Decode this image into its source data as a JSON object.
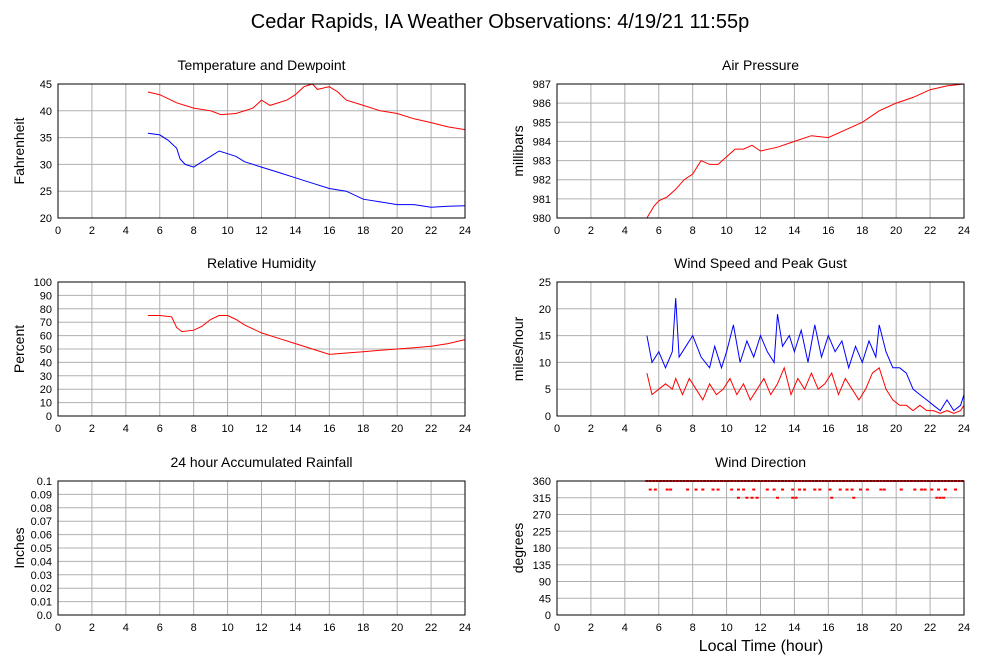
{
  "page": {
    "title": "Cedar Rapids, IA Weather Observations: 4/19/21 11:55p",
    "x_axis_title": "Local Time (hour)"
  },
  "colors": {
    "primary": "#ff0000",
    "secondary": "#0000ff",
    "grid": "#b0b0b0"
  },
  "chart_data": [
    {
      "id": "temperature-dewpoint",
      "type": "line",
      "title": "Temperature and Dewpoint",
      "xlabel": "",
      "ylabel": "Fahrenheit",
      "xlim": [
        0,
        24
      ],
      "ylim": [
        20,
        45
      ],
      "xticks": [
        0,
        2,
        4,
        6,
        8,
        10,
        12,
        14,
        16,
        18,
        20,
        22,
        24
      ],
      "yticks": [
        20,
        25,
        30,
        35,
        40,
        45
      ],
      "grid": true,
      "series": [
        {
          "color": "#ff0000",
          "x": [
            5.3,
            6.0,
            7.0,
            8.0,
            9.0,
            9.6,
            10.5,
            11.5,
            12.0,
            12.5,
            13.5,
            14.0,
            14.5,
            15.0,
            15.3,
            16.0,
            16.5,
            17.0,
            18.0,
            19.0,
            20.0,
            21.0,
            22.0,
            23.0,
            24.0
          ],
          "y": [
            43.5,
            43.0,
            41.5,
            40.5,
            40.0,
            39.3,
            39.5,
            40.5,
            42.0,
            41.0,
            42.0,
            43.0,
            44.5,
            45.0,
            44.0,
            44.5,
            43.5,
            42.0,
            41.0,
            40.0,
            39.5,
            38.5,
            37.8,
            37.0,
            36.5
          ]
        },
        {
          "color": "#0000ff",
          "x": [
            5.3,
            6.0,
            6.5,
            7.0,
            7.2,
            7.5,
            8.0,
            8.5,
            9.0,
            9.5,
            10.0,
            10.5,
            11.0,
            12.0,
            13.0,
            14.0,
            15.0,
            16.0,
            17.0,
            18.0,
            19.0,
            20.0,
            21.0,
            22.0,
            23.0,
            24.0
          ],
          "y": [
            35.8,
            35.5,
            34.5,
            33.0,
            31.0,
            30.0,
            29.5,
            30.5,
            31.5,
            32.5,
            32.0,
            31.5,
            30.5,
            29.5,
            28.5,
            27.5,
            26.5,
            25.5,
            25.0,
            23.5,
            23.0,
            22.5,
            22.5,
            22.0,
            22.2,
            22.3
          ]
        }
      ]
    },
    {
      "id": "air-pressure",
      "type": "line",
      "title": "Air Pressure",
      "xlabel": "",
      "ylabel": "millibars",
      "xlim": [
        0,
        24
      ],
      "ylim": [
        980,
        987
      ],
      "xticks": [
        0,
        2,
        4,
        6,
        8,
        10,
        12,
        14,
        16,
        18,
        20,
        22,
        24
      ],
      "yticks": [
        980,
        981,
        982,
        983,
        984,
        985,
        986,
        987
      ],
      "grid": true,
      "series": [
        {
          "color": "#ff0000",
          "x": [
            5.3,
            5.7,
            6.0,
            6.5,
            7.0,
            7.5,
            8.0,
            8.5,
            9.0,
            9.5,
            10.0,
            10.5,
            11.0,
            11.5,
            12.0,
            13.0,
            14.0,
            15.0,
            16.0,
            17.0,
            18.0,
            19.0,
            20.0,
            21.0,
            22.0,
            23.0,
            24.0
          ],
          "y": [
            980.0,
            980.6,
            980.9,
            981.1,
            981.5,
            982.0,
            982.3,
            983.0,
            982.8,
            982.8,
            983.2,
            983.6,
            983.6,
            983.8,
            983.5,
            983.7,
            984.0,
            984.3,
            984.2,
            984.6,
            985.0,
            985.6,
            986.0,
            986.3,
            986.7,
            986.9,
            987.0
          ]
        }
      ]
    },
    {
      "id": "relative-humidity",
      "type": "line",
      "title": "Relative Humidity",
      "xlabel": "",
      "ylabel": "Percent",
      "xlim": [
        0,
        24
      ],
      "ylim": [
        0,
        100
      ],
      "xticks": [
        0,
        2,
        4,
        6,
        8,
        10,
        12,
        14,
        16,
        18,
        20,
        22,
        24
      ],
      "yticks": [
        0,
        10,
        20,
        30,
        40,
        50,
        60,
        70,
        80,
        90,
        100
      ],
      "grid": true,
      "series": [
        {
          "color": "#ff0000",
          "x": [
            5.3,
            6.0,
            6.7,
            7.0,
            7.3,
            8.0,
            8.5,
            9.0,
            9.5,
            10.0,
            10.5,
            11.0,
            12.0,
            13.0,
            14.0,
            15.0,
            16.0,
            17.0,
            18.0,
            19.0,
            20.0,
            21.0,
            22.0,
            23.0,
            24.0
          ],
          "y": [
            75,
            75,
            74,
            66,
            63,
            64,
            67,
            72,
            75,
            75,
            72,
            68,
            62,
            58,
            54,
            50,
            46,
            47,
            48,
            49,
            50,
            51,
            52,
            54,
            57
          ]
        }
      ]
    },
    {
      "id": "wind-speed-gust",
      "type": "line",
      "title": "Wind Speed and Peak Gust",
      "xlabel": "",
      "ylabel": "miles/hour",
      "xlim": [
        0,
        24
      ],
      "ylim": [
        0,
        25
      ],
      "xticks": [
        0,
        2,
        4,
        6,
        8,
        10,
        12,
        14,
        16,
        18,
        20,
        22,
        24
      ],
      "yticks": [
        0,
        5,
        10,
        15,
        20,
        25
      ],
      "grid": true,
      "series": [
        {
          "color": "#0000ff",
          "x": [
            5.3,
            5.6,
            6.0,
            6.4,
            6.8,
            7.0,
            7.2,
            7.6,
            8.0,
            8.5,
            9.0,
            9.3,
            9.7,
            10.0,
            10.4,
            10.8,
            11.2,
            11.6,
            12.0,
            12.4,
            12.8,
            13.0,
            13.3,
            13.7,
            14.0,
            14.4,
            14.8,
            15.2,
            15.6,
            16.0,
            16.4,
            16.8,
            17.2,
            17.6,
            18.0,
            18.4,
            18.8,
            19.0,
            19.4,
            19.8,
            20.2,
            20.6,
            21.0,
            21.4,
            21.8,
            22.2,
            22.6,
            23.0,
            23.4,
            23.8,
            24.0
          ],
          "y": [
            15,
            10,
            12,
            9,
            12,
            22,
            11,
            13,
            15,
            11,
            9,
            13,
            9,
            12,
            17,
            10,
            14,
            11,
            15,
            12,
            10,
            19,
            13,
            15,
            12,
            16,
            10,
            17,
            11,
            15,
            12,
            14,
            9,
            13,
            10,
            14,
            11,
            17,
            12,
            9,
            9,
            8,
            5,
            4,
            3,
            2,
            1,
            3,
            1,
            2,
            4
          ]
        },
        {
          "color": "#ff0000",
          "x": [
            5.3,
            5.6,
            6.0,
            6.4,
            6.8,
            7.0,
            7.4,
            7.8,
            8.2,
            8.6,
            9.0,
            9.4,
            9.8,
            10.2,
            10.6,
            11.0,
            11.4,
            11.8,
            12.2,
            12.6,
            13.0,
            13.4,
            13.8,
            14.2,
            14.6,
            15.0,
            15.4,
            15.8,
            16.2,
            16.6,
            17.0,
            17.4,
            17.8,
            18.2,
            18.6,
            19.0,
            19.4,
            19.8,
            20.2,
            20.6,
            21.0,
            21.4,
            21.8,
            22.2,
            22.6,
            23.0,
            23.4,
            23.8,
            24.0
          ],
          "y": [
            8,
            4,
            5,
            6,
            5,
            7,
            4,
            7,
            5,
            3,
            6,
            4,
            5,
            7,
            4,
            6,
            3,
            5,
            7,
            4,
            6,
            9,
            4,
            7,
            5,
            8,
            5,
            6,
            8,
            4,
            7,
            5,
            3,
            5,
            8,
            9,
            5,
            3,
            2,
            2,
            1,
            2,
            1,
            1,
            0.5,
            1,
            0.5,
            1,
            2
          ]
        }
      ]
    },
    {
      "id": "accumulated-rainfall",
      "type": "line",
      "title": "24 hour Accumulated Rainfall",
      "xlabel": "",
      "ylabel": "Inches",
      "xlim": [
        0,
        24
      ],
      "ylim": [
        0,
        0.1
      ],
      "xticks": [
        0,
        2,
        4,
        6,
        8,
        10,
        12,
        14,
        16,
        18,
        20,
        22,
        24
      ],
      "yticks": [
        "0.0",
        "0.01",
        "0.02",
        "0.03",
        "0.04",
        "0.05",
        "0.06",
        "0.07",
        "0.08",
        "0.09",
        "0.1"
      ],
      "grid": true,
      "series": [
        {
          "color": "#ff0000",
          "x": [
            5.3,
            24.0
          ],
          "y": [
            0,
            0
          ]
        }
      ]
    },
    {
      "id": "wind-direction",
      "type": "scatter",
      "title": "Wind Direction",
      "xlabel": "Local Time (hour)",
      "ylabel": "degrees",
      "xlim": [
        0,
        24
      ],
      "ylim": [
        0,
        360
      ],
      "xticks": [
        0,
        2,
        4,
        6,
        8,
        10,
        12,
        14,
        16,
        18,
        20,
        22,
        24
      ],
      "yticks": [
        0,
        45,
        90,
        135,
        180,
        225,
        270,
        315,
        360
      ],
      "grid": true,
      "series": [
        {
          "color": "#ff0000",
          "x": [
            5.3,
            5.5,
            5.7,
            5.9,
            6.1,
            6.3,
            6.5,
            6.7,
            6.9,
            7.1,
            7.3,
            7.5,
            7.7,
            7.9,
            8.1,
            8.3,
            8.5,
            8.7,
            8.9,
            9.1,
            9.3,
            9.5,
            9.7,
            9.9,
            10.1,
            10.3,
            10.5,
            10.7,
            10.9,
            11.1,
            11.3,
            11.5,
            11.7,
            11.9,
            12.1,
            12.3,
            12.5,
            12.7,
            12.9,
            13.1,
            13.3,
            13.5,
            13.7,
            13.9,
            14.1,
            14.3,
            14.5,
            14.7,
            14.9,
            15.1,
            15.3,
            15.5,
            15.7,
            15.9,
            16.1,
            16.3,
            16.5,
            16.7,
            16.9,
            17.1,
            17.3,
            17.5,
            17.7,
            17.9,
            18.1,
            18.3,
            18.5,
            18.7,
            18.9,
            19.1,
            19.3,
            19.5,
            19.7,
            19.9,
            20.1,
            20.3,
            20.5,
            20.7,
            20.9,
            21.1,
            21.3,
            21.5,
            21.7,
            21.9,
            22.1,
            22.3,
            22.5,
            22.7,
            22.9,
            23.1,
            23.3,
            23.5,
            23.7,
            23.9,
            5.5,
            5.8,
            6.5,
            6.7,
            7.7,
            8.2,
            8.6,
            9.2,
            9.5,
            10.3,
            10.7,
            11.0,
            11.6,
            12.4,
            12.8,
            13.3,
            13.9,
            14.3,
            14.6,
            15.2,
            15.5,
            16.1,
            16.7,
            17.1,
            17.4,
            17.9,
            18.3,
            19.1,
            19.3,
            20.3,
            21.1,
            21.5,
            21.7,
            22.1,
            22.5,
            22.9,
            23.5,
            10.7,
            11.2,
            11.5,
            11.8,
            13.0,
            13.9,
            14.1,
            16.2,
            17.5,
            22.4,
            22.6,
            22.8
          ],
          "y": [
            360,
            360,
            360,
            360,
            360,
            360,
            360,
            360,
            360,
            360,
            360,
            360,
            360,
            360,
            360,
            360,
            360,
            360,
            360,
            360,
            360,
            360,
            360,
            360,
            360,
            360,
            360,
            360,
            360,
            360,
            360,
            360,
            360,
            360,
            360,
            360,
            360,
            360,
            360,
            360,
            360,
            360,
            360,
            360,
            360,
            360,
            360,
            360,
            360,
            360,
            360,
            360,
            360,
            360,
            360,
            360,
            360,
            360,
            360,
            360,
            360,
            360,
            360,
            360,
            360,
            360,
            360,
            360,
            360,
            360,
            360,
            360,
            360,
            360,
            360,
            360,
            360,
            360,
            360,
            360,
            360,
            360,
            360,
            360,
            360,
            360,
            360,
            360,
            360,
            360,
            360,
            360,
            360,
            360,
            337,
            337,
            337,
            337,
            337,
            337,
            337,
            337,
            337,
            337,
            337,
            337,
            337,
            337,
            337,
            337,
            337,
            337,
            337,
            337,
            337,
            337,
            337,
            337,
            337,
            337,
            337,
            337,
            337,
            337,
            337,
            337,
            337,
            337,
            337,
            337,
            337,
            315,
            315,
            315,
            315,
            315,
            315,
            315,
            315,
            315,
            315,
            315,
            315
          ]
        }
      ]
    }
  ]
}
